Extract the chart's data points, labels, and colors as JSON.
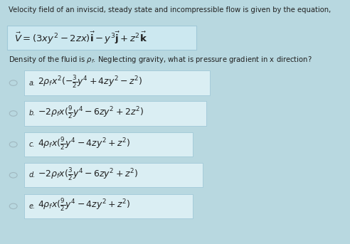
{
  "bg_color": "#b8d8e0",
  "title_line1": "Velocity field of an inviscid, steady state and incompressible flow is given by the equation,",
  "equation": "$\\vec{V} = (3xy^2 - 2zx)\\vec{\\mathbf{i}} - y^3\\vec{\\mathbf{j}} + z^2\\vec{\\mathbf{k}}$",
  "density_line": "Density of the fluid is $\\rho_f$. Neglecting gravity, what is pressure gradient in x direction?",
  "options": [
    {
      "label": "a.",
      "text": "$2\\rho_f x^2(-\\frac{3}{2}y^4 + 4zy^2 - z^2)$"
    },
    {
      "label": "b.",
      "text": "$-2\\rho_f x(\\frac{9}{2}y^4 - 6zy^2 + 2z^2)$"
    },
    {
      "label": "c.",
      "text": "$4\\rho_f x(\\frac{9}{2}y^4 - 4zy^2 + z^2)$"
    },
    {
      "label": "d.",
      "text": "$-2\\rho_f x(\\frac{3}{2}y^4 - 6zy^2 + z^2)$"
    },
    {
      "label": "e.",
      "text": "$4\\rho_f x(\\frac{9}{2}y^4 - 4zy^2 + z^2)$"
    }
  ],
  "text_color": "#222222",
  "box_fill_color": "#daeef3",
  "eq_box_fill": "#cce8f0",
  "box_edge_color": "#a0c8d8",
  "circle_color": "#a0b8c0",
  "title_fontsize": 7.2,
  "eq_fontsize": 9.5,
  "option_fontsize": 9.0,
  "label_fontsize": 7.0,
  "density_fontsize": 7.2
}
